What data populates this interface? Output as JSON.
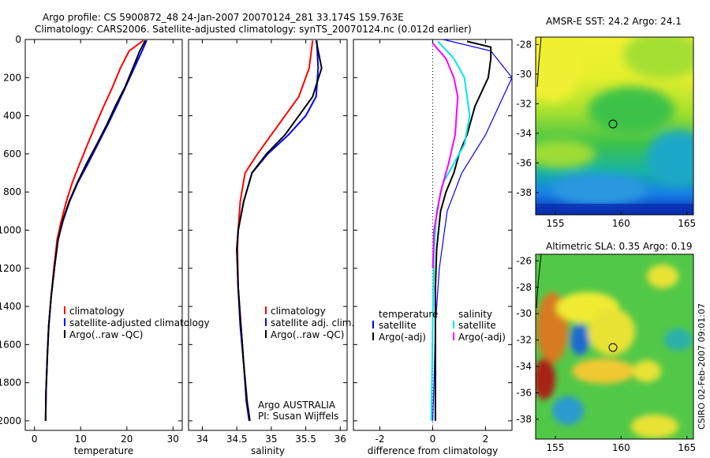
{
  "header": {
    "line1": "Argo profile: CS 5900872_48 24-Jan-2007 20070124_281 33.174S 159.763E",
    "line2": "Climatology: CARS2006. Satellite-adjusted climatology: synTS_20070124.nc (0.012d earlier)"
  },
  "side_label": "CSIRO 02-Feb-2007 09:01:07",
  "colors": {
    "climatology": "#ff0000",
    "satellite": "#0000ff",
    "argo": "#000000",
    "salinity_satellite": "#00e5ee",
    "salinity_argo": "#ff00ff"
  },
  "chart_data": [
    {
      "type": "line",
      "xlabel": "temperature",
      "ylabel": "",
      "xlim": [
        -2,
        32
      ],
      "ylim": [
        2050,
        0
      ],
      "xticks": [
        0,
        10,
        20,
        30
      ],
      "yticks": [
        0,
        200,
        400,
        600,
        800,
        1000,
        1200,
        1400,
        1600,
        1800,
        2000
      ],
      "legend": [
        "climatology",
        "satellite-adjusted climatology",
        "Argo(..raw -QC)"
      ],
      "legend_position": "bottom-right",
      "series": [
        {
          "name": "climatology",
          "color": "#ff0000",
          "x": [
            23.6,
            20.5,
            18.6,
            16.9,
            15.0,
            13.2,
            11.5,
            9.8,
            8.2,
            6.9,
            5.8,
            4.9,
            4.2,
            3.6,
            3.1,
            2.8,
            2.5,
            2.4
          ],
          "y": [
            5,
            60,
            150,
            250,
            350,
            450,
            550,
            650,
            750,
            850,
            950,
            1050,
            1200,
            1350,
            1500,
            1650,
            1850,
            2000
          ]
        },
        {
          "name": "satellite-adjusted climatology",
          "color": "#0000ff",
          "x": [
            24.3,
            23.3,
            21.6,
            19.7,
            17.8,
            15.8,
            13.7,
            11.6,
            9.4,
            7.6,
            6.2,
            5.1,
            4.3,
            3.6,
            3.1,
            2.8,
            2.5,
            2.4
          ],
          "y": [
            5,
            60,
            150,
            250,
            350,
            450,
            550,
            650,
            750,
            850,
            950,
            1050,
            1200,
            1350,
            1500,
            1650,
            1850,
            2000
          ]
        },
        {
          "name": "Argo(..raw -QC)",
          "color": "#000000",
          "x": [
            24.0,
            22.8,
            21.3,
            19.6,
            17.5,
            15.6,
            13.5,
            11.3,
            9.3,
            7.5,
            6.1,
            5.1,
            4.3,
            3.6,
            3.1,
            2.8,
            2.5,
            2.4
          ],
          "y": [
            5,
            60,
            150,
            250,
            350,
            450,
            550,
            650,
            750,
            850,
            950,
            1050,
            1200,
            1350,
            1500,
            1650,
            1850,
            2000
          ]
        }
      ]
    },
    {
      "type": "line",
      "xlabel": "salinity",
      "ylabel": "",
      "xlim": [
        33.8,
        36.1
      ],
      "ylim": [
        2050,
        0
      ],
      "xticks": [
        34,
        34.5,
        35,
        35.5,
        36
      ],
      "yticks": [
        0,
        200,
        400,
        600,
        800,
        1000,
        1200,
        1400,
        1600,
        1800,
        2000
      ],
      "legend": [
        "climatology",
        "satellite adj. clim.",
        "Argo(..raw -QC)"
      ],
      "legend_position": "bottom-right",
      "annotation": [
        "Argo AUSTRALIA",
        "PI: Susan Wijffels"
      ],
      "series": [
        {
          "name": "climatology",
          "color": "#ff0000",
          "x": [
            35.6,
            35.55,
            35.4,
            35.2,
            35.0,
            34.8,
            34.62,
            34.55,
            34.52,
            34.51,
            34.52,
            34.56,
            34.6,
            34.64,
            34.68
          ],
          "y": [
            5,
            150,
            300,
            400,
            500,
            600,
            700,
            850,
            1000,
            1100,
            1300,
            1500,
            1700,
            1900,
            2000
          ]
        },
        {
          "name": "satellite adj. clim.",
          "color": "#0000ff",
          "x": [
            35.66,
            35.68,
            35.65,
            35.5,
            35.25,
            34.95,
            34.72,
            34.6,
            34.52,
            34.5,
            34.52,
            34.55,
            34.6,
            34.64,
            34.68
          ],
          "y": [
            5,
            150,
            300,
            400,
            500,
            600,
            700,
            850,
            1000,
            1100,
            1300,
            1500,
            1700,
            1900,
            2000
          ]
        },
        {
          "name": "Argo(..raw -QC)",
          "color": "#000000",
          "x": [
            35.65,
            35.73,
            35.6,
            35.4,
            35.2,
            34.93,
            34.72,
            34.6,
            34.52,
            34.5,
            34.52,
            34.56,
            34.6,
            34.65,
            34.69
          ],
          "y": [
            5,
            150,
            300,
            400,
            500,
            600,
            700,
            850,
            1000,
            1100,
            1300,
            1500,
            1700,
            1900,
            2000
          ]
        }
      ]
    },
    {
      "type": "line",
      "xlabel": "difference from climatology",
      "ylabel": "",
      "xlim": [
        -3,
        3
      ],
      "ylim": [
        2050,
        0
      ],
      "xticks": [
        -2,
        0,
        2
      ],
      "yticks": [
        0,
        200,
        400,
        600,
        800,
        1000,
        1200,
        1400,
        1600,
        1800,
        2000
      ],
      "legend_left_title": "temperature",
      "legend_right_title": "salinity",
      "legend_left": [
        "satellite",
        "Argo(-adj)"
      ],
      "legend_right": [
        "satellite",
        "Argo(-adj)"
      ],
      "zero_line": true,
      "series": [
        {
          "name": "temperature satellite",
          "color": "#0000ff",
          "x": [
            0.4,
            2.2,
            3.0,
            2.0,
            1.1,
            0.55,
            0.25,
            0.1,
            0.05,
            0.0
          ],
          "y": [
            0,
            60,
            200,
            500,
            700,
            900,
            1200,
            1500,
            1800,
            2000
          ]
        },
        {
          "name": "temperature Argo(-adj)",
          "color": "#000000",
          "x": [
            1.3,
            2.2,
            2.2,
            2.1,
            1.6,
            1.3,
            1.0,
            0.8,
            0.5,
            0.3,
            0.15,
            0.1,
            0.1,
            0.1,
            0.1
          ],
          "y": [
            10,
            40,
            100,
            200,
            350,
            500,
            600,
            700,
            800,
            900,
            1100,
            1300,
            1500,
            1800,
            2000
          ]
        },
        {
          "name": "salinity satellite",
          "color": "#00e5ee",
          "x": [
            0.2,
            0.8,
            1.2,
            1.4,
            1.2,
            0.8,
            0.4,
            0.15,
            0.05,
            0.0,
            -0.05
          ],
          "y": [
            10,
            100,
            200,
            400,
            550,
            650,
            750,
            900,
            1100,
            1500,
            2000
          ]
        },
        {
          "name": "salinity Argo(-adj)",
          "color": "#ff00ff",
          "x": [
            0.0,
            0.5,
            0.8,
            0.95,
            0.9,
            0.85,
            0.6,
            0.3,
            0.05,
            0.0
          ],
          "y": [
            20,
            100,
            200,
            300,
            400,
            500,
            650,
            800,
            1000,
            1200
          ]
        }
      ]
    },
    {
      "type": "heatmap",
      "title": "AMSR-E SST: 24.2 Argo: 24.1",
      "xlim": [
        153.5,
        165.5
      ],
      "ylim": [
        -39.5,
        -27.5
      ],
      "xticks": [
        155,
        160,
        165
      ],
      "yticks": [
        -28,
        -30,
        -32,
        -34,
        -36,
        -38
      ],
      "argo_position": [
        159.763,
        -33.174
      ]
    },
    {
      "type": "heatmap",
      "title": "Altimetric SLA: 0.35 Argo: 0.19",
      "xlim": [
        153.5,
        165.5
      ],
      "ylim": [
        -39.5,
        -25.5
      ],
      "xticks": [
        155,
        160,
        165
      ],
      "yticks": [
        -26,
        -28,
        -30,
        -32,
        -34,
        -36,
        -38
      ],
      "argo_position": [
        159.763,
        -33.174
      ]
    }
  ]
}
